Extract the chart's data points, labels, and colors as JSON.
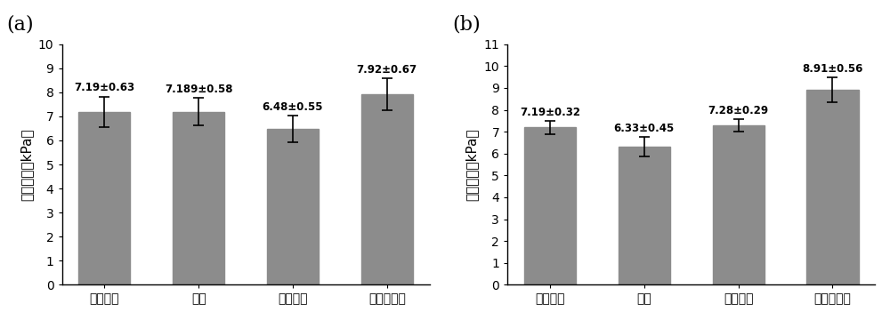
{
  "panel_a": {
    "label": "(a)",
    "categories": [
      "初始状态",
      "空气",
      "去离子水",
      "磷酸缓冲液"
    ],
    "values": [
      7.19,
      7.189,
      6.48,
      7.92
    ],
    "errors": [
      0.63,
      0.58,
      0.55,
      0.67
    ],
    "annotations": [
      "7.19±0.63",
      "7.189±0.58",
      "6.48±0.55",
      "7.92±0.67"
    ],
    "ylim": [
      0,
      10
    ],
    "yticks": [
      0,
      1,
      2,
      3,
      4,
      5,
      6,
      7,
      8,
      9,
      10
    ],
    "ylabel": "拉伸强度（kPa）"
  },
  "panel_b": {
    "label": "(b)",
    "categories": [
      "初始状态",
      "空气",
      "去离子水",
      "磷酸缓冲液"
    ],
    "values": [
      7.19,
      6.33,
      7.28,
      8.91
    ],
    "errors": [
      0.32,
      0.45,
      0.29,
      0.56
    ],
    "annotations": [
      "7.19±0.32",
      "6.33±0.45",
      "7.28±0.29",
      "8.91±0.56"
    ],
    "ylim": [
      0,
      11
    ],
    "yticks": [
      0,
      1,
      2,
      3,
      4,
      5,
      6,
      7,
      8,
      9,
      10,
      11
    ],
    "ylabel": "拉伸强度（kPa）"
  },
  "bar_color": "#8c8c8c",
  "bar_width": 0.55,
  "error_color": "black",
  "error_capsize": 4,
  "error_linewidth": 1.2,
  "annotation_fontsize": 8.5,
  "tick_fontsize": 10,
  "ylabel_fontsize": 11,
  "panel_label_fontsize": 16,
  "figure_width": 10.0,
  "figure_height": 3.6,
  "dpi": 100
}
